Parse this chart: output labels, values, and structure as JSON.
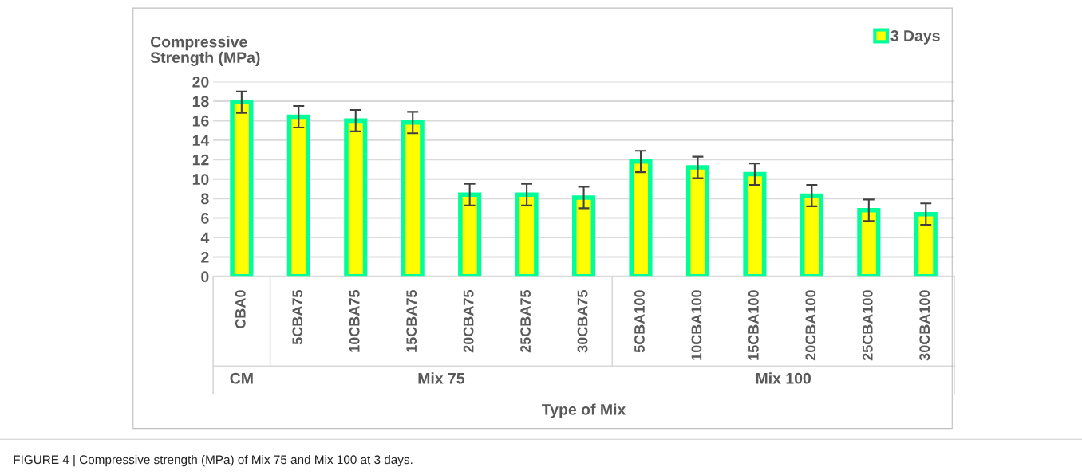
{
  "chart_data": {
    "type": "bar",
    "ylabel": "Compressive\nStrength (MPa)",
    "xlabel": "Type of Mix",
    "categories": [
      "CBA0",
      "5CBA75",
      "10CBA75",
      "15CBA75",
      "20CBA75",
      "25CBA75",
      "30CBA75",
      "5CBA100",
      "10CBA100",
      "15CBA100",
      "20CBA100",
      "25CBA100",
      "30CBA100"
    ],
    "series": [
      {
        "name": "3 Days",
        "color": "#ffff00",
        "values": [
          17.9,
          16.4,
          16.0,
          15.8,
          8.4,
          8.4,
          8.1,
          11.8,
          11.2,
          10.5,
          8.3,
          6.8,
          6.4
        ],
        "errors": [
          1.1,
          1.1,
          1.1,
          1.1,
          1.1,
          1.1,
          1.1,
          1.1,
          1.1,
          1.1,
          1.1,
          1.1,
          1.1
        ]
      }
    ],
    "ylim": [
      0,
      20
    ],
    "yticks": [
      0,
      2,
      4,
      6,
      8,
      10,
      12,
      14,
      16,
      18,
      20
    ],
    "grid": "y",
    "legend": "top right",
    "annotations": [
      "CM",
      "Mix 75",
      "Mix 100",
      "FIGURE 4 | Compressive strength (MPa) of Mix 75 and Mix 100 at 3 days."
    ]
  }
}
